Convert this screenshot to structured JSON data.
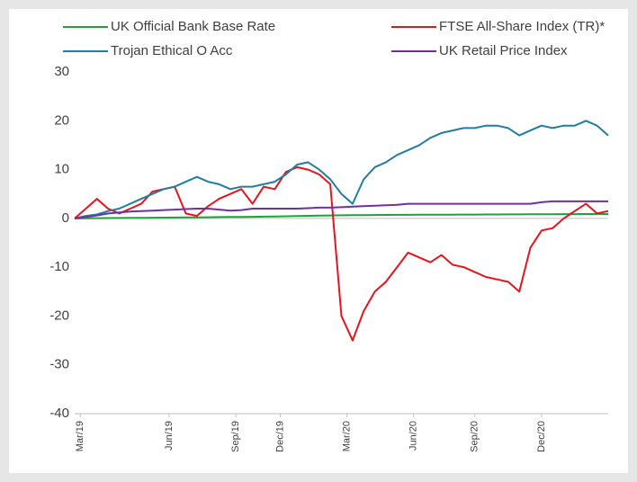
{
  "chart_data": {
    "type": "line",
    "x": [
      0,
      2,
      4,
      6,
      8,
      10,
      12,
      14,
      16,
      18,
      20,
      22,
      24,
      26,
      28,
      30,
      32,
      34,
      36,
      38,
      40,
      42,
      44,
      46,
      48,
      50,
      52,
      54,
      56,
      58,
      60,
      62,
      64,
      66,
      68,
      70,
      72,
      74,
      76,
      78,
      80,
      82,
      84,
      86,
      88,
      90,
      92,
      94,
      96
    ],
    "xlim": [
      0,
      96
    ],
    "xticks": [
      {
        "value": 1,
        "label": "Mar/19"
      },
      {
        "value": 17,
        "label": "Jun/19"
      },
      {
        "value": 29,
        "label": "Sep/19"
      },
      {
        "value": 37,
        "label": "Dec/19"
      },
      {
        "value": 49,
        "label": "Mar/20"
      },
      {
        "value": 61,
        "label": "Jun/20"
      },
      {
        "value": 72,
        "label": "Sep/20"
      },
      {
        "value": 84,
        "label": "Dec/20"
      }
    ],
    "ylim": [
      -40,
      30
    ],
    "yticks": [
      -40,
      -30,
      -20,
      -10,
      0,
      10,
      20,
      30
    ],
    "series": [
      {
        "name": "UK Official Bank Base Rate",
        "color": "#1ea23a",
        "values": [
          0,
          0.02,
          0.04,
          0.06,
          0.08,
          0.1,
          0.12,
          0.14,
          0.16,
          0.18,
          0.2,
          0.22,
          0.24,
          0.26,
          0.28,
          0.3,
          0.33,
          0.36,
          0.4,
          0.44,
          0.48,
          0.52,
          0.56,
          0.6,
          0.64,
          0.66,
          0.68,
          0.7,
          0.71,
          0.72,
          0.73,
          0.74,
          0.75,
          0.76,
          0.77,
          0.78,
          0.79,
          0.8,
          0.81,
          0.82,
          0.83,
          0.84,
          0.85,
          0.86,
          0.87,
          0.88,
          0.89,
          0.9,
          0.9
        ]
      },
      {
        "name": "FTSE All-Share Index (TR)*",
        "color": "#e8141b",
        "values": [
          0,
          2,
          4,
          2,
          1,
          2,
          3,
          5.5,
          6,
          6.5,
          1,
          0.5,
          2.5,
          4,
          5,
          6,
          3,
          6.5,
          6,
          9.5,
          10.5,
          10,
          9,
          7,
          -20,
          -25,
          -19,
          -15,
          -13,
          -10,
          -7,
          -8,
          -9,
          -7.5,
          -9.5,
          -10,
          -11,
          -12,
          -12.5,
          -13,
          -15,
          -6,
          -2.5,
          -2,
          0,
          1.5,
          3,
          1,
          1.5
        ]
      },
      {
        "name": "Trojan Ethical O Acc",
        "color": "#1f7ea1",
        "values": [
          0,
          0.5,
          0.8,
          1.5,
          2,
          3,
          4,
          5,
          6,
          6.5,
          7.5,
          8.5,
          7.5,
          7,
          6,
          6.5,
          6.5,
          7,
          7.5,
          9,
          11,
          11.5,
          10,
          8,
          5,
          3,
          8,
          10.5,
          11.5,
          13,
          14,
          15,
          16.5,
          17.5,
          18,
          18.5,
          18.5,
          19,
          19,
          18.5,
          17,
          18,
          19,
          18.5,
          19,
          19,
          20,
          19,
          17
        ]
      },
      {
        "name": "UK Retail Price Index",
        "color": "#7030a0",
        "values": [
          0,
          0.3,
          0.6,
          1,
          1.2,
          1.4,
          1.5,
          1.6,
          1.7,
          1.8,
          1.9,
          2,
          2,
          1.8,
          1.6,
          1.7,
          2,
          2,
          2,
          2,
          2,
          2.1,
          2.2,
          2.2,
          2.3,
          2.4,
          2.5,
          2.6,
          2.7,
          2.8,
          3,
          3,
          3,
          3,
          3,
          3,
          3,
          3,
          3,
          3,
          3,
          3,
          3.3,
          3.5,
          3.5,
          3.5,
          3.5,
          3.5,
          3.5
        ]
      }
    ]
  }
}
